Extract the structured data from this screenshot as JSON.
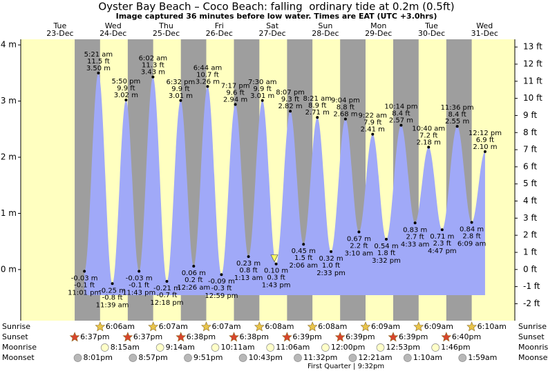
{
  "chart_data": {
    "type": "tide",
    "title": "Oyster Bay Beach – Coco Beach: falling  ordinary tide at 0.2m (0.5ft)",
    "subtitle": "Image captured 36 minutes before low water. Times are EAT (UTC +3.0hrs)",
    "ylim": [
      -0.91,
      4.1
    ],
    "yticks": [
      {
        "value": 4,
        "label": "4 m"
      },
      {
        "value": 3,
        "label": "3 m"
      },
      {
        "value": 2,
        "label": "2 m"
      },
      {
        "value": 1,
        "label": "1 m"
      },
      {
        "value": 0,
        "label": "0 m"
      }
    ],
    "y2lim": [
      -2.99,
      13.45
    ],
    "y2ticks": [
      {
        "value": 13,
        "label": "13 ft"
      },
      {
        "value": 12,
        "label": "12 ft"
      },
      {
        "value": 11,
        "label": "11 ft"
      },
      {
        "value": 10,
        "label": "10 ft"
      },
      {
        "value": 9,
        "label": "9 ft"
      },
      {
        "value": 8,
        "label": "8 ft"
      },
      {
        "value": 7,
        "label": "7 ft"
      },
      {
        "value": 6,
        "label": "6 ft"
      },
      {
        "value": 5,
        "label": "5 ft"
      },
      {
        "value": 4,
        "label": "4 ft"
      },
      {
        "value": 3,
        "label": "3 ft"
      },
      {
        "value": 2,
        "label": "2 ft"
      },
      {
        "value": 1,
        "label": "1 ft"
      },
      {
        "value": 0,
        "label": "0 ft"
      },
      {
        "value": -1,
        "label": "-1 ft"
      },
      {
        "value": -2,
        "label": "-2 ft"
      }
    ],
    "x": [
      "11:01 pm",
      "5:21 am",
      "11:39 am",
      "5:50 pm",
      "11:43 pm",
      "6:02 am",
      "12:18 pm",
      "6:32 pm",
      "12:26 am",
      "6:44 am",
      "12:59 pm",
      "7:17 pm",
      "1:13 am",
      "7:30 am",
      "1:43 pm",
      "8:07 pm",
      "2:06 am",
      "8:21 am",
      "2:33 pm",
      "9:04 pm",
      "3:10 am",
      "9:22 am",
      "3:32 pm",
      "10:14 pm",
      "4:33 am",
      "10:40 am",
      "4:47 pm",
      "11:36 pm",
      "6:09 am",
      "12:12 pm"
    ],
    "values": [
      -0.03,
      3.5,
      -0.25,
      3.02,
      -0.03,
      3.43,
      -0.21,
      3.01,
      0.06,
      3.26,
      -0.09,
      2.94,
      0.23,
      3.01,
      0.1,
      2.82,
      0.45,
      2.71,
      0.32,
      2.68,
      0.67,
      2.41,
      0.54,
      2.57,
      0.83,
      2.18,
      0.71,
      2.55,
      0.84,
      2.1
    ],
    "value_labels": [
      "-0.03 m",
      "3.50 m",
      "-0.25 m",
      "3.02 m",
      "-0.03 m",
      "3.43 m",
      "-0.21 m",
      "3.01 m",
      "0.06 m",
      "3.26 m",
      "-0.09 m",
      "2.94 m",
      "0.23 m",
      "3.01 m",
      "0.10 m",
      "2.82 m",
      "0.45 m",
      "2.71 m",
      "0.32 m",
      "2.68 m",
      "0.67 m",
      "2.41 m",
      "0.54 m",
      "2.57 m",
      "0.83 m",
      "2.18 m",
      "0.71 m",
      "2.55 m",
      "0.84 m",
      "2.10 m"
    ],
    "ft_labels": [
      "-0.1 ft",
      "11.5 ft",
      "-0.8 ft",
      "9.9 ft",
      "-0.1 ft",
      "11.3 ft",
      "-0.7 ft",
      "9.9 ft",
      "0.2 ft",
      "10.7 ft",
      "-0.3 ft",
      "9.6 ft",
      "0.8 ft",
      "9.9 ft",
      "0.3 ft",
      "9.3 ft",
      "1.5 ft",
      "8.9 ft",
      "1.0 ft",
      "8.8 ft",
      "2.2 ft",
      "7.9 ft",
      "1.8 ft",
      "8.4 ft",
      "2.7 ft",
      "7.2 ft",
      "2.3 ft",
      "8.4 ft",
      "2.8 ft",
      "6.9 ft"
    ],
    "current_level": 0.2,
    "days": [
      {
        "weekday": "Tue",
        "date": "23-Dec",
        "sunrise": null,
        "sunset": "6:37pm",
        "moonrise": null,
        "moonset": "8:01pm"
      },
      {
        "weekday": "Wed",
        "date": "24-Dec",
        "sunrise": "6:06am",
        "sunset": "6:37pm",
        "moonrise": "8:15am",
        "moonset": "8:57pm"
      },
      {
        "weekday": "Thu",
        "date": "25-Dec",
        "sunrise": "6:07am",
        "sunset": "6:38pm",
        "moonrise": "9:14am",
        "moonset": "9:51pm"
      },
      {
        "weekday": "Fri",
        "date": "26-Dec",
        "sunrise": "6:07am",
        "sunset": "6:38pm",
        "moonrise": "10:11am",
        "moonset": "10:43pm"
      },
      {
        "weekday": "Sat",
        "date": "27-Dec",
        "sunrise": "6:08am",
        "sunset": "6:39pm",
        "moonrise": "11:06am",
        "moonset": "11:32pm"
      },
      {
        "weekday": "Sun",
        "date": "28-Dec",
        "sunrise": "6:08am",
        "sunset": "6:39pm",
        "moonrise": "12:00pm",
        "moonset": null
      },
      {
        "weekday": "Mon",
        "date": "29-Dec",
        "sunrise": "6:09am",
        "sunset": "6:39pm",
        "moonrise": "12:53pm",
        "moonset": "12:21am"
      },
      {
        "weekday": "Tue",
        "date": "30-Dec",
        "sunrise": "6:09am",
        "sunset": "6:40pm",
        "moonrise": "1:46pm",
        "moonset": "1:10am"
      },
      {
        "weekday": "Wed",
        "date": "31-Dec",
        "sunrise": "6:10am",
        "sunset": null,
        "moonrise": null,
        "moonset": "1:59am"
      }
    ],
    "row_labels": {
      "sunrise": "Sunrise",
      "sunset": "Sunset",
      "moonrise": "Moonrise",
      "moonset": "Moonset"
    },
    "moon_phase": "First Quarter | 9:32pm",
    "colors": {
      "day": "#ffffc0",
      "night": "#9e9e9e",
      "water": "#a0a9f8",
      "day_label": "#e0201c",
      "sunrise": "#e8c44a",
      "sunset": "#d8452c",
      "moonrise": "#ffffc8",
      "moonset": "#b8b8b8",
      "marker": "#ffff60"
    }
  }
}
